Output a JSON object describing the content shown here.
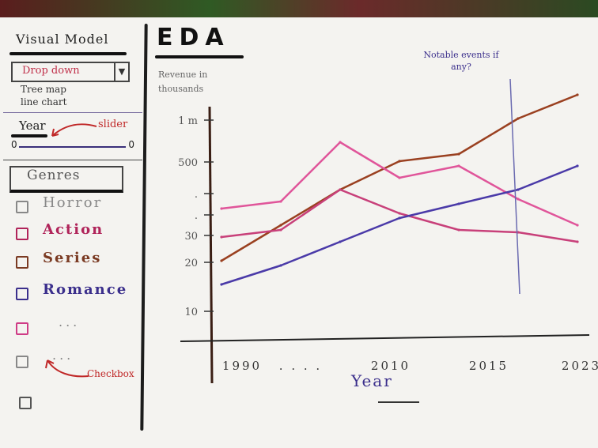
{
  "sidebar": {
    "visual_model_title": "Visual Model",
    "dropdown_label": "Drop down",
    "dropdown_options": [
      "Tree map",
      "line chart"
    ],
    "year_label": "Year",
    "slider_annotation": "slider",
    "slider_min": "0",
    "slider_max": "0",
    "genres_title": "Genres",
    "genres": [
      {
        "label": "Horror",
        "color": "#888888"
      },
      {
        "label": "Action",
        "color": "#b0245a"
      },
      {
        "label": "Series",
        "color": "#7a3a22"
      },
      {
        "label": "Romance",
        "color": "#3b2f8c"
      },
      {
        "label": "...",
        "color": "#cf3c86"
      },
      {
        "label": "...",
        "color": "#888888"
      },
      {
        "label": "",
        "color": "#555555"
      }
    ],
    "checkbox_annotation": "Checkbox"
  },
  "header": {
    "title": "EDA"
  },
  "annotations": {
    "notable_events": "Notable events if any?"
  },
  "chart_data": {
    "type": "line",
    "title": "EDA",
    "ylabel": "Revenue in thousands",
    "xlabel": "Year",
    "x_tick_labels": [
      "1990",
      ". . . .",
      "2010",
      "2015",
      "2023"
    ],
    "y_tick_labels": [
      "1 m",
      "500",
      ".",
      ".",
      "30",
      "20",
      "10"
    ],
    "x": [
      "1990",
      "1995",
      "2000",
      "2005",
      "2010",
      "2015",
      "2023"
    ],
    "series": [
      {
        "color": "#9a4020",
        "values": [
          300,
          450,
          600,
          720,
          750,
          900,
          1000
        ]
      },
      {
        "color": "#e0559a",
        "values": [
          520,
          550,
          800,
          650,
          700,
          560,
          450
        ]
      },
      {
        "color": "#c8407a",
        "values": [
          400,
          430,
          600,
          500,
          430,
          420,
          380
        ]
      },
      {
        "color": "#4a3aa8",
        "values": [
          200,
          280,
          380,
          480,
          540,
          600,
          700
        ]
      }
    ],
    "annotation_year": "2015",
    "grid": false,
    "legend": "none"
  }
}
